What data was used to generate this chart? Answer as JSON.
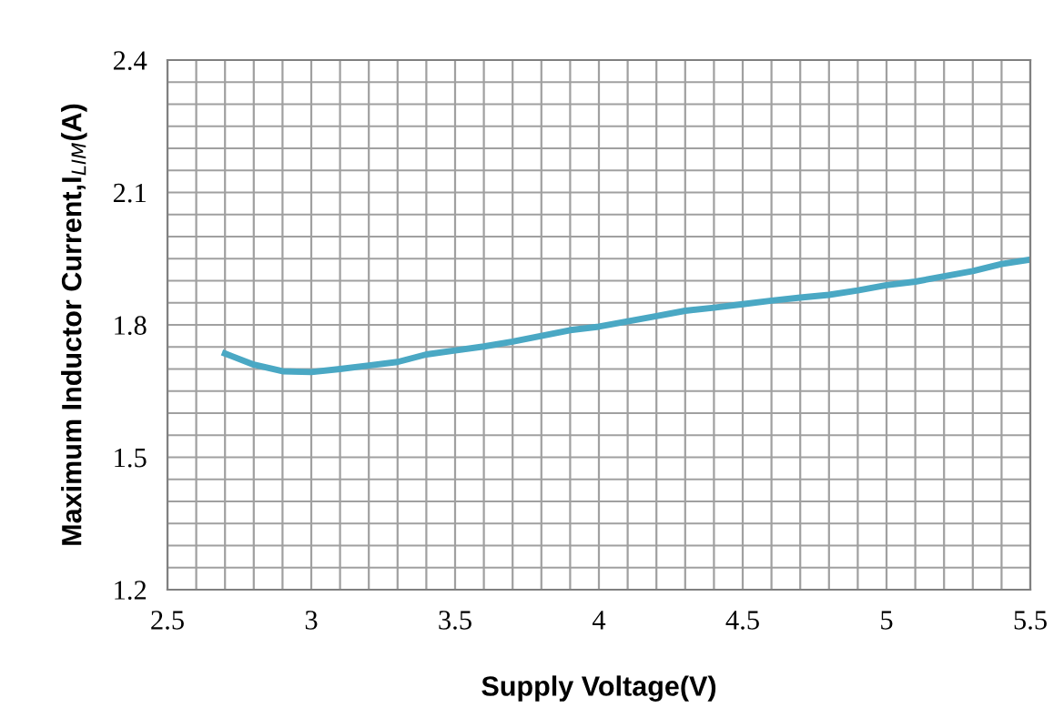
{
  "chart_data": {
    "type": "line",
    "xlabel": "Supply Voltage(V)",
    "ylabel": "Maximum Inductor Current,I$_{LIM}$(A)",
    "x": [
      2.7,
      2.8,
      2.9,
      3.0,
      3.1,
      3.2,
      3.3,
      3.4,
      3.5,
      3.6,
      3.7,
      3.8,
      3.9,
      4.0,
      4.1,
      4.2,
      4.3,
      4.4,
      4.5,
      4.6,
      4.7,
      4.8,
      4.9,
      5.0,
      5.1,
      5.2,
      5.3,
      5.4,
      5.5
    ],
    "series": [
      {
        "color": "#4aa8c4",
        "values": [
          1.735,
          1.71,
          1.695,
          1.693,
          1.7,
          1.708,
          1.716,
          1.733,
          1.742,
          1.751,
          1.762,
          1.775,
          1.788,
          1.796,
          1.808,
          1.82,
          1.832,
          1.839,
          1.847,
          1.855,
          1.862,
          1.868,
          1.878,
          1.89,
          1.898,
          1.91,
          1.922,
          1.938,
          1.948
        ]
      }
    ],
    "xlim": [
      2.5,
      5.5
    ],
    "xticks": [
      2.5,
      3,
      3.5,
      4,
      4.5,
      5,
      5.5
    ],
    "ylim": [
      1.2,
      2.4
    ],
    "yticks": [
      1.2,
      1.5,
      1.8,
      2.1,
      2.4
    ],
    "grid": true,
    "legend": false,
    "marker": "none",
    "line_style": "solid"
  }
}
